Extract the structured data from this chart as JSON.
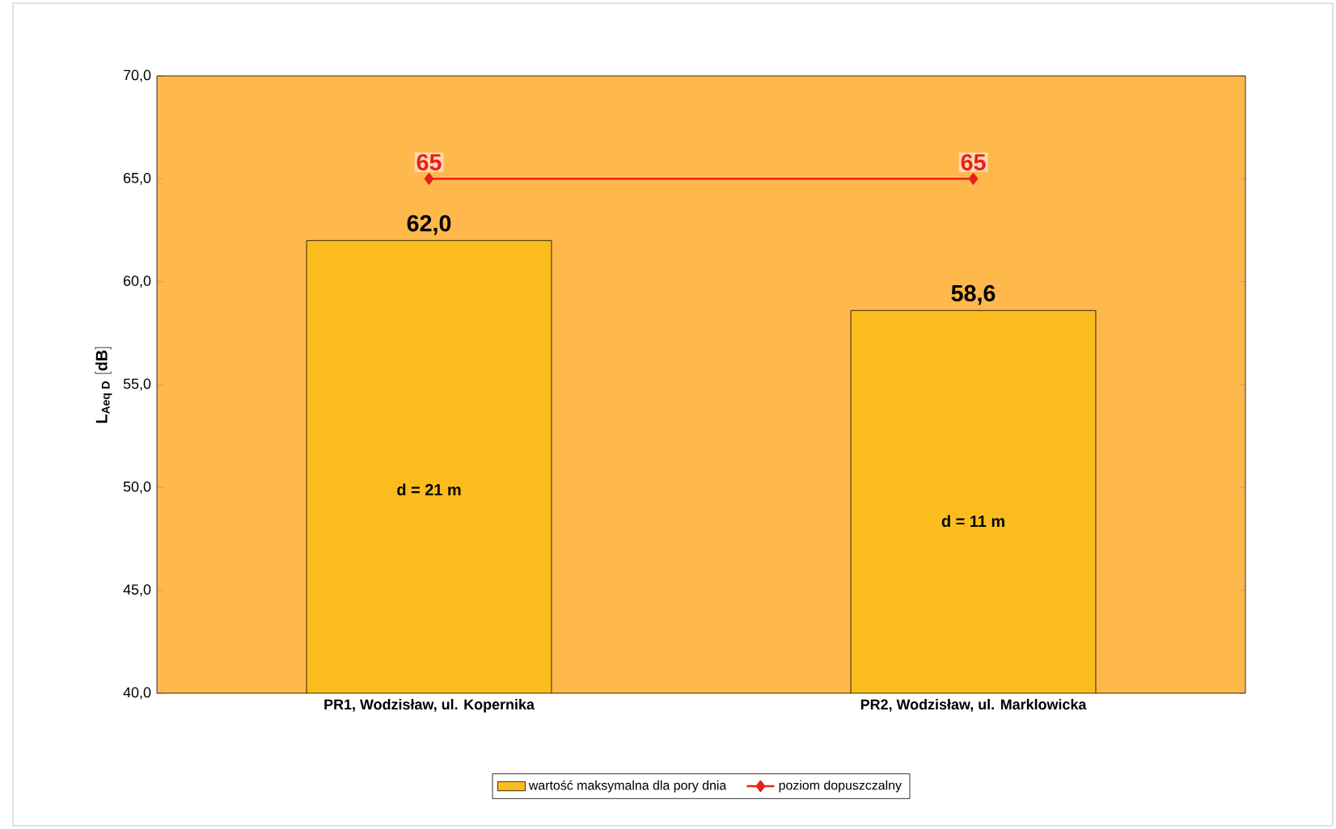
{
  "chart_data": {
    "type": "bar",
    "ylabel": "\\mathbf{L}_{\\mathbf{Aeq\\;D}}\\;\\mathbf{[dB]}",
    "categories": [
      "PR1, Wodzisław, ul. Kopernika",
      "PR2, Wodzisław, ul. Marklowicka"
    ],
    "series": [
      {
        "name": "wartość maksymalna dla pory dnia",
        "color": "#fbbd1e",
        "values": [
          62.0,
          58.6
        ],
        "value_labels": [
          "62,0",
          "58,6"
        ]
      },
      {
        "name": "poziom dopuszczalny",
        "type": "line",
        "color": "#e8201a",
        "values": [
          65,
          65
        ],
        "value_labels": [
          "65",
          "65"
        ],
        "marker": "diamond"
      }
    ],
    "ylim": [
      40,
      70
    ],
    "yticks": [
      {
        "value": 40,
        "label": "40,0"
      },
      {
        "value": 45,
        "label": "45,0"
      },
      {
        "value": 50,
        "label": "50,0"
      },
      {
        "value": 55,
        "label": "55,0"
      },
      {
        "value": 60,
        "label": "60,0"
      },
      {
        "value": 65,
        "label": "65,0"
      },
      {
        "value": 70,
        "label": "70,0"
      }
    ],
    "annotations": [
      "d = 21 m",
      "d = 11 m"
    ],
    "legend": "bottom"
  }
}
